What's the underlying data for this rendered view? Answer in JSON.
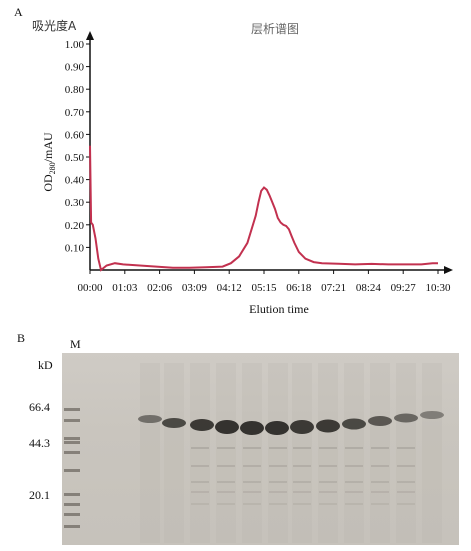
{
  "panel_a": {
    "letter": "A",
    "cjk_ylabel": "吸光度A",
    "title": "层析谱图",
    "ylabel": "OD",
    "ylabel_sub": "280",
    "ylabel_unit": "/mAU",
    "xlabel": "Elution time"
  },
  "panel_b": {
    "letter": "B",
    "lane_marker_label": "M",
    "kd_label": "kD",
    "markers": [
      "66.4",
      "44.3",
      "20.1"
    ]
  },
  "colors": {
    "trace": "#c2314f",
    "axis": "#111111"
  },
  "chart_data": {
    "type": "line",
    "title": "层析谱图",
    "xlabel": "Elution time",
    "ylabel": "OD280/mAU",
    "x_ticks": [
      "00:00",
      "01:03",
      "02:06",
      "03:09",
      "04:12",
      "05:15",
      "06:18",
      "07:21",
      "08:24",
      "09:27",
      "10:30"
    ],
    "y_ticks": [
      "0.10",
      "0.20",
      "0.30",
      "0.40",
      "0.50",
      "0.60",
      "0.70",
      "0.80",
      "0.90",
      "1.00"
    ],
    "ylim": [
      0,
      1.0
    ],
    "xlim_seconds": [
      0,
      630
    ],
    "grid": false,
    "series": [
      {
        "x_seconds": [
          0,
          2,
          5,
          10,
          15,
          20,
          30,
          45,
          60,
          90,
          120,
          150,
          180,
          210,
          240,
          255,
          270,
          285,
          300,
          305,
          310,
          315,
          320,
          325,
          330,
          335,
          340,
          345,
          350,
          355,
          360,
          365,
          370,
          378,
          390,
          405,
          420,
          450,
          480,
          510,
          540,
          570,
          600,
          620,
          630
        ],
        "values": [
          0.55,
          0.21,
          0.2,
          0.14,
          0.05,
          0.0,
          0.02,
          0.03,
          0.025,
          0.02,
          0.015,
          0.01,
          0.01,
          0.012,
          0.015,
          0.03,
          0.06,
          0.12,
          0.24,
          0.3,
          0.35,
          0.365,
          0.355,
          0.33,
          0.3,
          0.27,
          0.23,
          0.21,
          0.2,
          0.195,
          0.18,
          0.15,
          0.12,
          0.08,
          0.05,
          0.035,
          0.03,
          0.028,
          0.025,
          0.027,
          0.025,
          0.025,
          0.025,
          0.03,
          0.03
        ]
      }
    ]
  }
}
